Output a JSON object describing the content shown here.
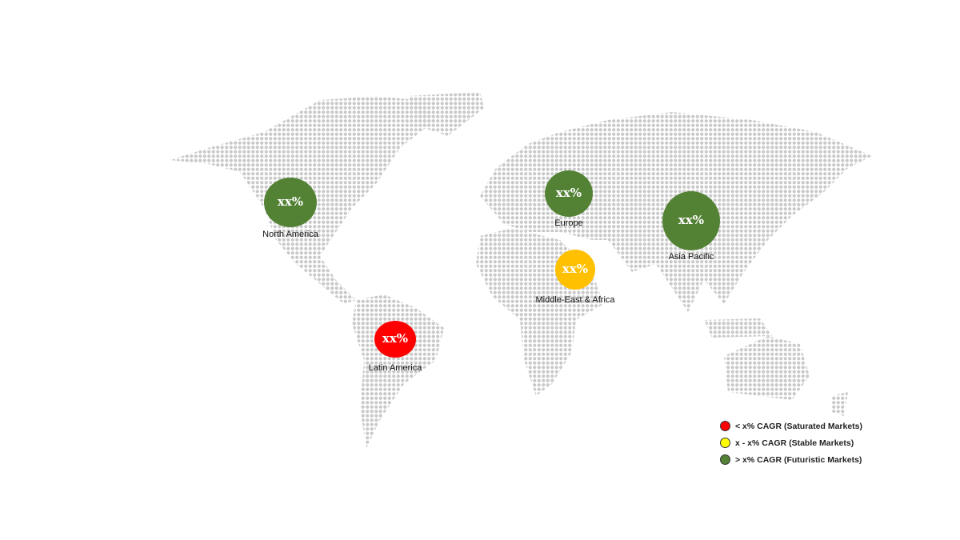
{
  "colors": {
    "futuristic": "#548235",
    "stable": "#ffc000",
    "saturated": "#ff0000",
    "legend_stable": "#ffff00",
    "map_dots": "#c9c9c9"
  },
  "regions": [
    {
      "name": "North America",
      "value": "xx%",
      "category": "futuristic"
    },
    {
      "name": "Europe",
      "value": "xx%",
      "category": "futuristic"
    },
    {
      "name": "Asia Pacific",
      "value": "xx%",
      "category": "futuristic"
    },
    {
      "name": "Middle-East & Africa",
      "value": "xx%",
      "category": "stable"
    },
    {
      "name": "Latin America",
      "value": "xx%",
      "category": "saturated"
    }
  ],
  "legend": [
    {
      "label": "< x% CAGR (Saturated Markets)",
      "category": "saturated"
    },
    {
      "label": "x - x% CAGR (Stable Markets)",
      "category": "stable"
    },
    {
      "label": "> x% CAGR (Futuristic Markets)",
      "category": "futuristic"
    }
  ]
}
